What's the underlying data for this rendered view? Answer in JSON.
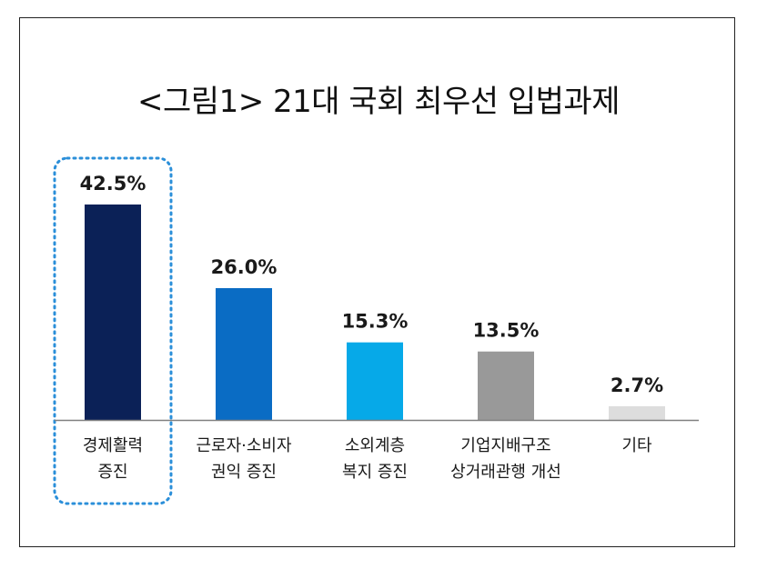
{
  "chart_data": {
    "type": "bar",
    "title": "<그림1> 21대 국회 최우선 입법과제",
    "categories": [
      [
        "경제활력",
        "증진"
      ],
      [
        "근로자·소비자",
        "권익 증진"
      ],
      [
        "소외계층",
        "복지 증진"
      ],
      [
        "기업지배구조",
        "상거래관행 개선"
      ],
      [
        "기타"
      ]
    ],
    "values": [
      42.5,
      26.0,
      15.3,
      13.5,
      2.7
    ],
    "value_labels": [
      "42.5%",
      "26.0%",
      "15.3%",
      "13.5%",
      "2.7%"
    ],
    "colors": [
      "#0b2157",
      "#0a6cc4",
      "#06a9e8",
      "#999999",
      "#dddddd"
    ],
    "highlight_index": 0,
    "highlight_color": "#2b8fd9",
    "axis_color": "#808080",
    "ylim": [
      0,
      42.5
    ],
    "grid": false,
    "legend": "none"
  }
}
